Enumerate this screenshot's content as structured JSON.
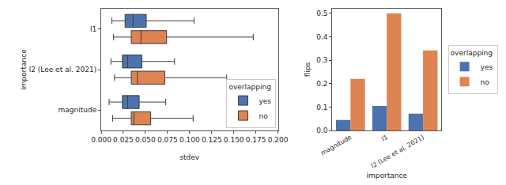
{
  "chart_data": [
    {
      "type": "box",
      "orientation": "horizontal",
      "categories": [
        "l1",
        "l2 (Lee et al. 2021)",
        "magnitude"
      ],
      "x_label": "stdev",
      "y_label": "importance",
      "legend_title": "overlapping",
      "legend": "lower right",
      "xlim": [
        0,
        0.2
      ],
      "xticks": [
        {
          "value": 0,
          "label": "0.000"
        },
        {
          "value": 0.025,
          "label": "0.025"
        },
        {
          "value": 0.05,
          "label": "0.050"
        },
        {
          "value": 0.075,
          "label": "0.075"
        },
        {
          "value": 0.1,
          "label": "0.100"
        },
        {
          "value": 0.125,
          "label": "0.125"
        },
        {
          "value": 0.15,
          "label": "0.150"
        },
        {
          "value": 0.175,
          "label": "0.175"
        },
        {
          "value": 0.2,
          "label": "0.200"
        }
      ],
      "series": [
        {
          "name": "yes",
          "color": "#4c72b0",
          "whisker_low": [
            0.012,
            0.011,
            0.009
          ],
          "q1": [
            0.027,
            0.024,
            0.024
          ],
          "median": [
            0.036,
            0.03,
            0.03
          ],
          "q3": [
            0.051,
            0.046,
            0.043
          ],
          "whisker_high": [
            0.105,
            0.083,
            0.073
          ]
        },
        {
          "name": "no",
          "color": "#dd8452",
          "whisker_low": [
            0.014,
            0.015,
            0.013
          ],
          "q1": [
            0.034,
            0.034,
            0.034
          ],
          "median": [
            0.045,
            0.041,
            0.037
          ],
          "q3": [
            0.074,
            0.072,
            0.056
          ],
          "whisker_high": [
            0.172,
            0.142,
            0.104
          ]
        }
      ]
    },
    {
      "type": "bar",
      "categories": [
        "magnitude",
        "l1",
        "l2 (Lee et al. 2021)"
      ],
      "x_label": "importance",
      "y_label": "flips",
      "legend_title": "overlapping",
      "legend": "right",
      "ylim": [
        0,
        0.52
      ],
      "yticks": [
        {
          "value": 0,
          "label": "0.0"
        },
        {
          "value": 0.1,
          "label": "0.1"
        },
        {
          "value": 0.2,
          "label": "0.2"
        },
        {
          "value": 0.3,
          "label": "0.3"
        },
        {
          "value": 0.4,
          "label": "0.4"
        },
        {
          "value": 0.5,
          "label": "0.5"
        }
      ],
      "series": [
        {
          "name": "yes",
          "color": "#4c72b0",
          "values": [
            0.045,
            0.105,
            0.072
          ]
        },
        {
          "name": "no",
          "color": "#dd8452",
          "values": [
            0.22,
            0.5,
            0.342
          ]
        }
      ]
    }
  ]
}
